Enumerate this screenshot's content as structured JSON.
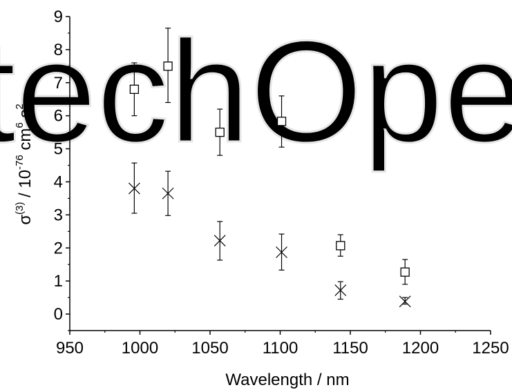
{
  "chart_data": {
    "type": "scatter",
    "title": "",
    "xlabel": "Wavelength / nm",
    "ylabel_parts": {
      "sigma": "σ",
      "order": "(3)",
      "mid": " / 10",
      "exp1": "-76",
      "cm": " cm",
      "exp2": "6",
      "s": " s",
      "exp3": "2"
    },
    "xlim": [
      950,
      1250
    ],
    "ylim": [
      -0.5,
      9
    ],
    "x_ticks": [
      950,
      1000,
      1050,
      1100,
      1150,
      1200,
      1250
    ],
    "y_ticks": [
      0,
      1,
      2,
      3,
      4,
      5,
      6,
      7,
      8,
      9
    ],
    "grid": false,
    "legend": "none",
    "watermark": "techOpen",
    "series": [
      {
        "marker": "open-square",
        "points": [
          {
            "x": 996,
            "y": 6.8,
            "err_lo": 6.0,
            "err_hi": 7.6
          },
          {
            "x": 1020,
            "y": 7.5,
            "err_lo": 6.4,
            "err_hi": 8.65
          },
          {
            "x": 1057,
            "y": 5.5,
            "err_lo": 4.8,
            "err_hi": 6.2
          },
          {
            "x": 1101,
            "y": 5.83,
            "err_lo": 5.05,
            "err_hi": 6.6
          },
          {
            "x": 1143,
            "y": 2.07,
            "err_lo": 1.75,
            "err_hi": 2.4
          },
          {
            "x": 1189,
            "y": 1.27,
            "err_lo": 0.9,
            "err_hi": 1.65
          }
        ]
      },
      {
        "marker": "cross",
        "points": [
          {
            "x": 996,
            "y": 3.8,
            "err_lo": 3.05,
            "err_hi": 4.57
          },
          {
            "x": 1020,
            "y": 3.65,
            "err_lo": 2.98,
            "err_hi": 4.32
          },
          {
            "x": 1057,
            "y": 2.22,
            "err_lo": 1.63,
            "err_hi": 2.8
          },
          {
            "x": 1101,
            "y": 1.87,
            "err_lo": 1.33,
            "err_hi": 2.42
          },
          {
            "x": 1143,
            "y": 0.72,
            "err_lo": 0.45,
            "err_hi": 0.98
          },
          {
            "x": 1189,
            "y": 0.38,
            "err_lo": 0.3,
            "err_hi": 0.5
          }
        ]
      }
    ]
  }
}
